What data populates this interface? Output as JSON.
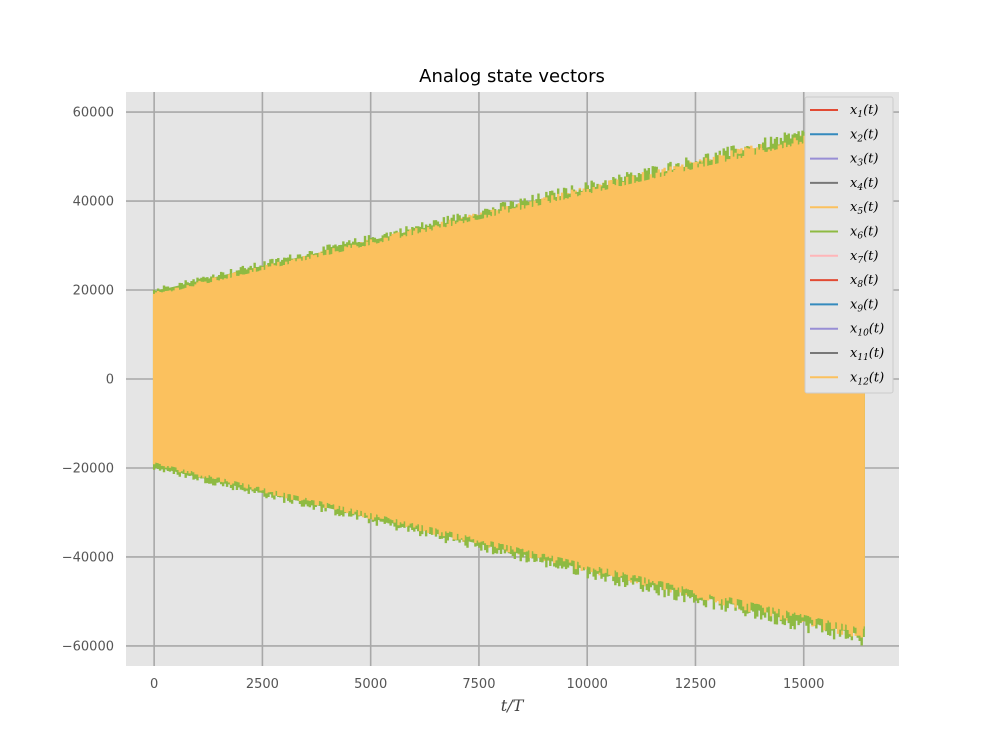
{
  "chart_data": {
    "type": "line",
    "title": "Analog state vectors",
    "xlabel": "t/T",
    "ylabel": "",
    "xlim": [
      -650,
      17200
    ],
    "ylim": [
      -64500,
      64500
    ],
    "xticks": [
      0,
      2500,
      5000,
      7500,
      10000,
      12500,
      15000
    ],
    "xtick_labels": [
      "0",
      "2500",
      "5000",
      "7500",
      "10000",
      "12500",
      "15000"
    ],
    "yticks": [
      -60000,
      -40000,
      -20000,
      0,
      20000,
      40000,
      60000
    ],
    "ytick_labels": [
      "−60000",
      "−40000",
      "−20000",
      "0",
      "20000",
      "40000",
      "60000"
    ],
    "grid": true,
    "legend_position": "top-right",
    "x_end": 16384,
    "series": [
      {
        "name": "x_1(t)",
        "color": "#E24A33",
        "envelope_upper": [
          [
            0,
            0
          ],
          [
            0,
            0
          ]
        ],
        "envelope_lower": [
          [
            0,
            0
          ],
          [
            0,
            0
          ]
        ]
      },
      {
        "name": "x_2(t)",
        "color": "#348ABD",
        "envelope_upper": [
          [
            0,
            0
          ],
          [
            0,
            0
          ]
        ],
        "envelope_lower": [
          [
            0,
            0
          ],
          [
            0,
            0
          ]
        ]
      },
      {
        "name": "x_3(t)",
        "color": "#988ED5",
        "envelope_upper": [
          [
            0,
            0
          ],
          [
            0,
            0
          ]
        ],
        "envelope_lower": [
          [
            0,
            0
          ],
          [
            0,
            0
          ]
        ]
      },
      {
        "name": "x_4(t)",
        "color": "#777777",
        "envelope_upper": [
          [
            0,
            0
          ],
          [
            0,
            0
          ]
        ],
        "envelope_lower": [
          [
            0,
            0
          ],
          [
            0,
            0
          ]
        ]
      },
      {
        "name": "x_5(t)",
        "color": "#FBC15E",
        "envelope_upper": [
          [
            0,
            19000
          ],
          [
            16384,
            57000
          ]
        ],
        "envelope_lower": [
          [
            0,
            -19000
          ],
          [
            16384,
            -57000
          ]
        ]
      },
      {
        "name": "x_6(t)",
        "color": "#8EBA42",
        "envelope_upper": [
          [
            0,
            20000
          ],
          [
            16384,
            58000
          ]
        ],
        "envelope_lower": [
          [
            0,
            -20000
          ],
          [
            16384,
            -58500
          ]
        ]
      },
      {
        "name": "x_7(t)",
        "color": "#FFB5B8",
        "envelope_upper": [
          [
            0,
            0
          ],
          [
            0,
            0
          ]
        ],
        "envelope_lower": [
          [
            0,
            0
          ],
          [
            0,
            0
          ]
        ]
      },
      {
        "name": "x_8(t)",
        "color": "#E24A33",
        "envelope_upper": [
          [
            0,
            0
          ],
          [
            0,
            0
          ]
        ],
        "envelope_lower": [
          [
            0,
            0
          ],
          [
            0,
            0
          ]
        ]
      },
      {
        "name": "x_9(t)",
        "color": "#348ABD",
        "envelope_upper": [
          [
            0,
            0
          ],
          [
            0,
            0
          ]
        ],
        "envelope_lower": [
          [
            0,
            0
          ],
          [
            0,
            0
          ]
        ]
      },
      {
        "name": "x_10(t)",
        "color": "#988ED5",
        "envelope_upper": [
          [
            0,
            0
          ],
          [
            0,
            0
          ]
        ],
        "envelope_lower": [
          [
            0,
            0
          ],
          [
            0,
            0
          ]
        ]
      },
      {
        "name": "x_11(t)",
        "color": "#777777",
        "envelope_upper": [
          [
            0,
            0
          ],
          [
            0,
            0
          ]
        ],
        "envelope_lower": [
          [
            0,
            0
          ],
          [
            0,
            0
          ]
        ]
      },
      {
        "name": "x_12(t)",
        "color": "#FBC15E",
        "envelope_upper": [
          [
            0,
            19000
          ],
          [
            16384,
            57000
          ]
        ],
        "envelope_lower": [
          [
            0,
            -19000
          ],
          [
            16384,
            -57000
          ]
        ]
      }
    ]
  },
  "legend": {
    "items": [
      {
        "base": "x",
        "sub": "1",
        "suffix": "(t)"
      },
      {
        "base": "x",
        "sub": "2",
        "suffix": "(t)"
      },
      {
        "base": "x",
        "sub": "3",
        "suffix": "(t)"
      },
      {
        "base": "x",
        "sub": "4",
        "suffix": "(t)"
      },
      {
        "base": "x",
        "sub": "5",
        "suffix": "(t)"
      },
      {
        "base": "x",
        "sub": "6",
        "suffix": "(t)"
      },
      {
        "base": "x",
        "sub": "7",
        "suffix": "(t)"
      },
      {
        "base": "x",
        "sub": "8",
        "suffix": "(t)"
      },
      {
        "base": "x",
        "sub": "9",
        "suffix": "(t)"
      },
      {
        "base": "x",
        "sub": "10",
        "suffix": "(t)"
      },
      {
        "base": "x",
        "sub": "11",
        "suffix": "(t)"
      },
      {
        "base": "x",
        "sub": "12",
        "suffix": "(t)"
      }
    ]
  },
  "colors": {
    "plot_background": "#E5E5E5",
    "grid": "#A8A8A8"
  }
}
